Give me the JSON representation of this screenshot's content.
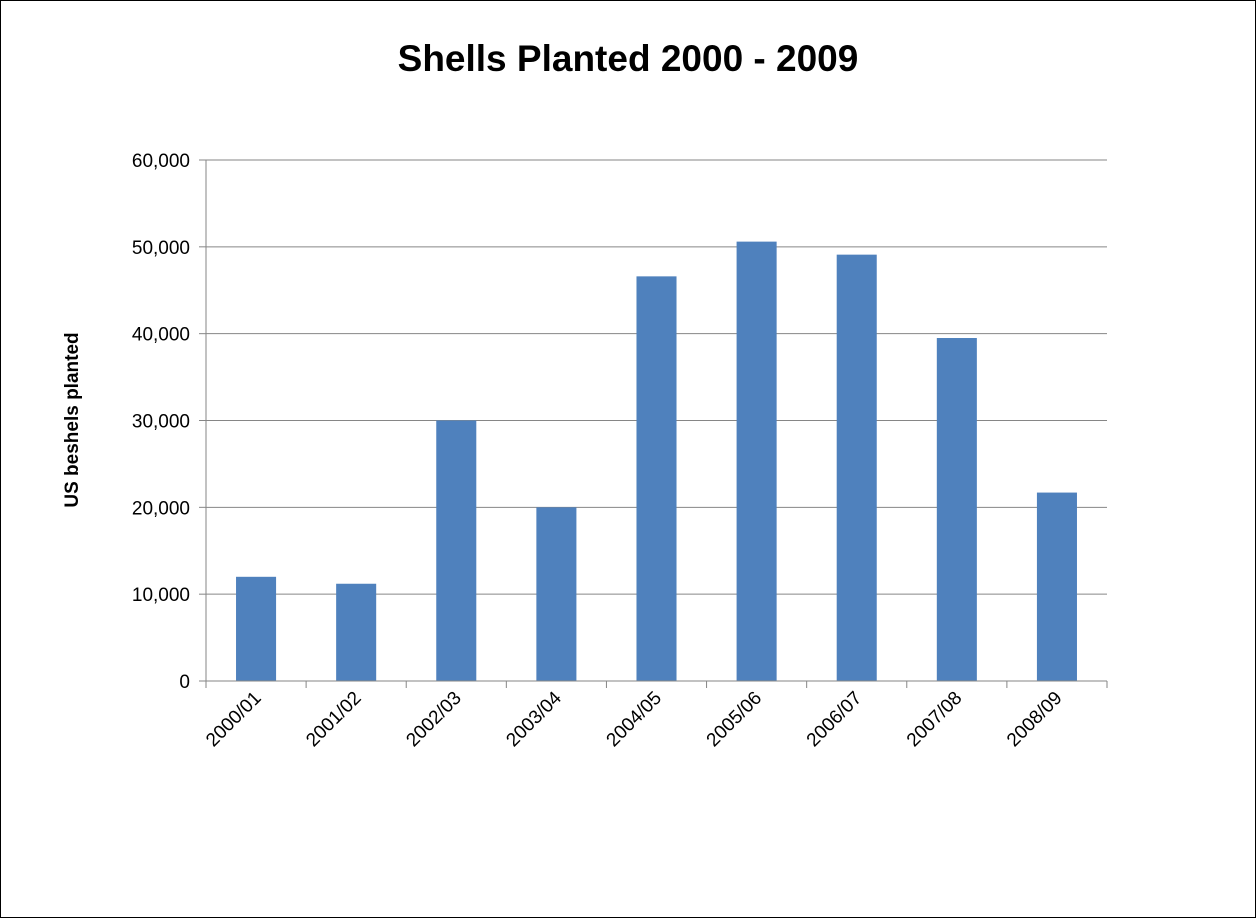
{
  "chart_data": {
    "type": "bar",
    "title": "Shells Planted 2000 - 2009",
    "xlabel": "",
    "ylabel": "US beshels planted",
    "categories": [
      "2000/01",
      "2001/02",
      "2002/03",
      "2003/04",
      "2004/05",
      "2005/06",
      "2006/07",
      "2007/08",
      "2008/09"
    ],
    "values": [
      12000,
      11200,
      30000,
      20000,
      46600,
      50600,
      49100,
      39500,
      21700
    ],
    "ylim": [
      0,
      60000
    ],
    "yticks": [
      0,
      10000,
      20000,
      30000,
      40000,
      50000,
      60000
    ],
    "ytick_labels": [
      "0",
      "10,000",
      "20,000",
      "30,000",
      "40,000",
      "50,000",
      "60,000"
    ],
    "grid": true,
    "legend": "none",
    "colors": {
      "bar": "#4f81bd",
      "grid": "#868686",
      "axis": "#868686"
    }
  }
}
